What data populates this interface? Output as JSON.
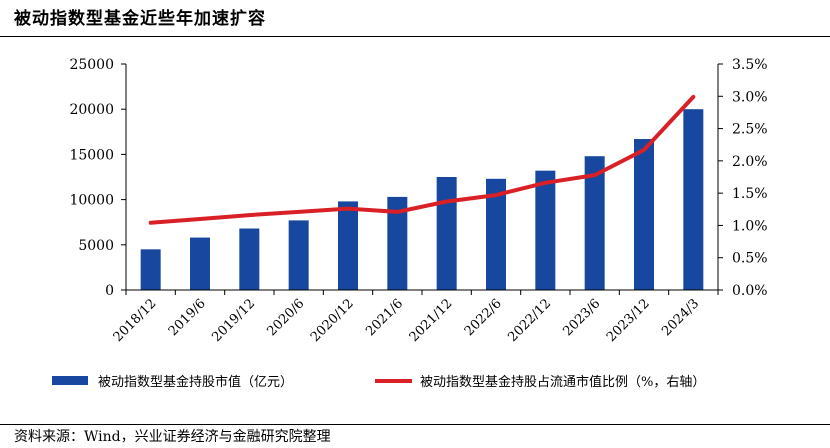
{
  "header": {
    "title": "被动指数型基金近些年加速扩容"
  },
  "footer": {
    "source": "资料来源：Wind，兴业证券经济与金融研究院整理"
  },
  "chart_data": {
    "type": "bar",
    "categories": [
      "2018/12",
      "2019/6",
      "2019/12",
      "2020/6",
      "2020/12",
      "2021/6",
      "2021/12",
      "2022/6",
      "2022/12",
      "2023/6",
      "2023/12",
      "2024/3"
    ],
    "series": [
      {
        "name": "被动指数型基金持股市值（亿元）",
        "type": "bar",
        "axis": "left",
        "color": "#17479e",
        "values": [
          4500,
          5800,
          6800,
          7700,
          9800,
          10300,
          12500,
          12300,
          13200,
          14800,
          16700,
          20000
        ]
      },
      {
        "name": "被动指数型基金持股占流通市值比例（%，右轴）",
        "type": "line",
        "axis": "right",
        "color": "#d92026",
        "values": [
          1.04,
          1.1,
          1.16,
          1.21,
          1.26,
          1.21,
          1.37,
          1.47,
          1.66,
          1.78,
          2.17,
          2.99
        ]
      }
    ],
    "y_left": {
      "min": 0,
      "max": 25000,
      "ticks": [
        "0",
        "5000",
        "10000",
        "15000",
        "20000",
        "25000"
      ]
    },
    "y_right": {
      "min": 0,
      "max": 3.5,
      "ticks": [
        "0.0%",
        "0.5%",
        "1.0%",
        "1.5%",
        "2.0%",
        "2.5%",
        "3.0%",
        "3.5%"
      ]
    },
    "grid": false,
    "legend_position": "bottom"
  }
}
